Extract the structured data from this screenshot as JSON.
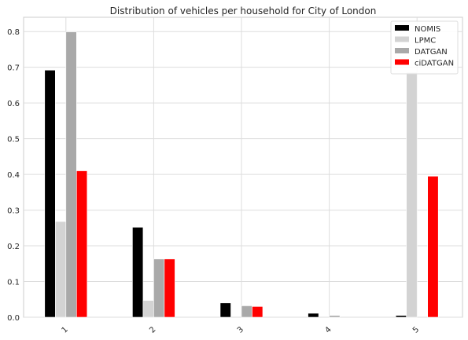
{
  "chart_data": {
    "type": "bar",
    "title": "Distribution of vehicles per household for City of London",
    "xlabel": "",
    "ylabel": "",
    "categories": [
      "1",
      "2",
      "3",
      "4",
      "5"
    ],
    "ylim": [
      0,
      0.84
    ],
    "yticks": [
      "0.0",
      "0.1",
      "0.2",
      "0.3",
      "0.4",
      "0.5",
      "0.6",
      "0.7",
      "0.8"
    ],
    "grid": true,
    "legend_position": "top-right",
    "series": [
      {
        "name": "NOMIS",
        "color": "#000000",
        "values": [
          0.692,
          0.252,
          0.04,
          0.011,
          0.005
        ]
      },
      {
        "name": "LPMC",
        "color": "#d3d3d3",
        "values": [
          0.268,
          0.047,
          0.0,
          0.0,
          0.686
        ]
      },
      {
        "name": "DATGAN",
        "color": "#a9a9a9",
        "values": [
          0.799,
          0.163,
          0.032,
          0.005,
          0.0
        ]
      },
      {
        "name": "ciDATGAN",
        "color": "#ff0000",
        "values": [
          0.41,
          0.163,
          0.03,
          0.0,
          0.395
        ]
      }
    ]
  }
}
